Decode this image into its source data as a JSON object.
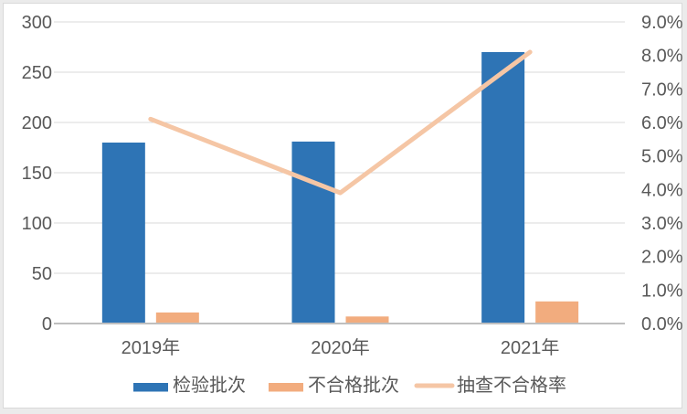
{
  "chart_data": {
    "type": "combo",
    "title": "",
    "categories": [
      "2019年",
      "2020年",
      "2021年"
    ],
    "series": [
      {
        "name": "检验批次",
        "type": "bar",
        "axis": "left",
        "color": "#2e74b5",
        "values": [
          180,
          181,
          270
        ]
      },
      {
        "name": "不合格批次",
        "type": "bar",
        "axis": "left",
        "color": "#f2ac7e",
        "values": [
          11,
          7,
          22
        ]
      },
      {
        "name": "抽查不合格率",
        "type": "line",
        "axis": "right",
        "color": "#f5c6a5",
        "values": [
          6.1,
          3.9,
          8.1
        ],
        "unit": "%"
      }
    ],
    "left_axis": {
      "min": 0,
      "max": 300,
      "step": 50,
      "tick_labels": [
        "0",
        "50",
        "100",
        "150",
        "200",
        "250",
        "300"
      ]
    },
    "right_axis": {
      "min": 0,
      "max": 9,
      "step": 1,
      "tick_labels": [
        "0.0%",
        "1.0%",
        "2.0%",
        "3.0%",
        "4.0%",
        "5.0%",
        "6.0%",
        "7.0%",
        "8.0%",
        "9.0%"
      ]
    },
    "grid": true,
    "legend_position": "bottom"
  },
  "colors": {
    "bar_blue": "#2e74b5",
    "bar_orange": "#f2ac7e",
    "line_peach": "#f5c6a5",
    "gridline": "#d9d9d9",
    "axis_line": "#bfbfbf",
    "text": "#595959",
    "frame_border": "#d9d9d9",
    "background": "#ffffff"
  }
}
